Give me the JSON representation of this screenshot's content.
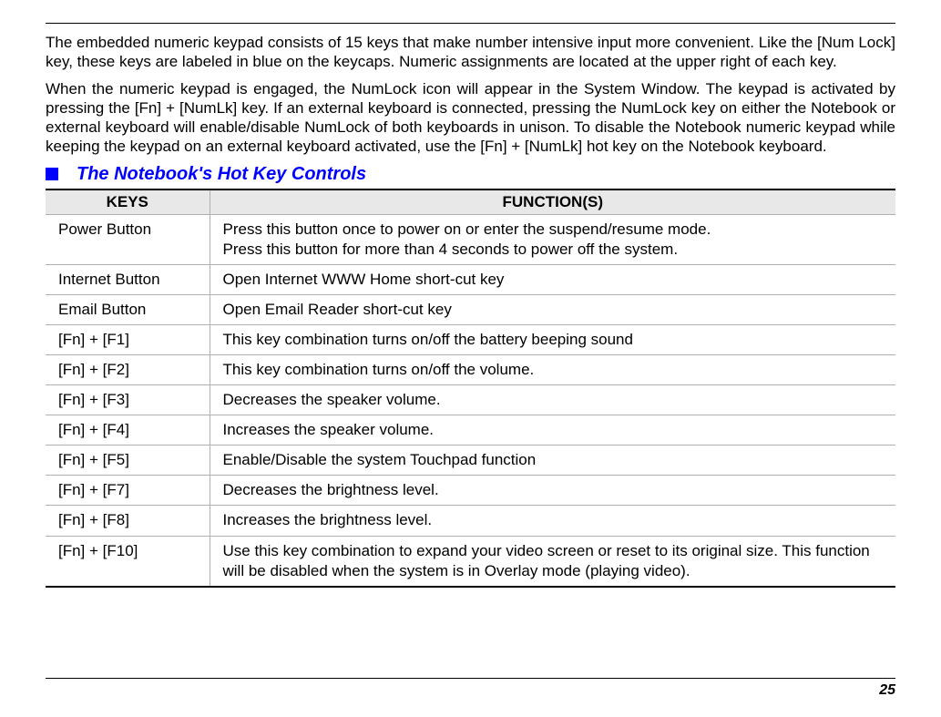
{
  "paragraph1": "The embedded numeric keypad consists of 15 keys that make number intensive input more convenient.  Like the [Num Lock] key, these keys are labeled in blue on the keycaps.  Numeric assignments are located at the upper right of each key.",
  "paragraph2": "When the numeric keypad is engaged, the NumLock icon will appear in the System Window.  The keypad is activated by pressing the [Fn] + [NumLk] key.  If an external keyboard is connected, pressing the NumLock key on either the Notebook or external keyboard will enable/disable NumLock of both keyboards in unison. To disable the Notebook numeric keypad while keeping the keypad on an external keyboard activated, use the [Fn] + [NumLk] hot key on the Notebook keyboard.",
  "heading": "The Notebook's Hot Key Controls",
  "table": {
    "columns": [
      "KEYS",
      "FUNCTION(S)"
    ],
    "rows": [
      [
        "Power Button",
        "Press this button once to power on or enter the suspend/resume mode.\nPress this button for more than 4 seconds to power off the system."
      ],
      [
        "Internet Button",
        "Open Internet WWW Home short-cut key"
      ],
      [
        "Email Button",
        "Open Email Reader short-cut key"
      ],
      [
        "[Fn] + [F1]",
        "This key combination turns on/off the battery beeping sound"
      ],
      [
        "[Fn] + [F2]",
        "This key combination turns on/off the volume."
      ],
      [
        "[Fn] + [F3]",
        "Decreases the speaker volume."
      ],
      [
        "[Fn] + [F4]",
        "Increases the speaker volume."
      ],
      [
        "[Fn] + [F5]",
        "Enable/Disable the system Touchpad function"
      ],
      [
        "[Fn] + [F7]",
        "Decreases the brightness level."
      ],
      [
        "[Fn] + [F8]",
        "Increases the brightness level."
      ],
      [
        "[Fn] + [F10]",
        "Use this key combination to expand your video screen or reset to its original size.  This function will be disabled when the system is in Overlay mode (playing video)."
      ]
    ]
  },
  "pageNumber": "25"
}
